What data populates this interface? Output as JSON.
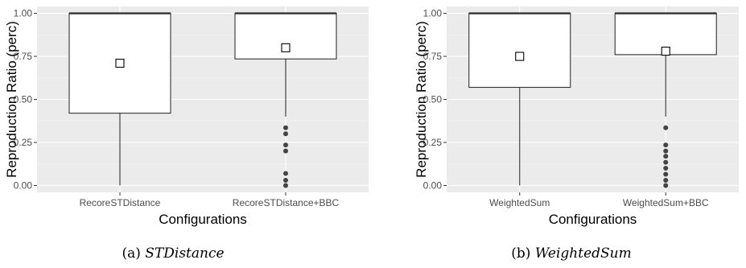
{
  "chart_data": [
    {
      "type": "boxplot",
      "panel_id": "a",
      "caption_prefix": "(a)",
      "caption_name": "STDistance",
      "xlabel": "Configurations",
      "ylabel": "Reproduction Ratio (perc)",
      "ylim": [
        -0.04,
        1.04
      ],
      "yticks": [
        0.0,
        0.25,
        0.5,
        0.75,
        1.0
      ],
      "ytick_labels": [
        "0.00",
        "0.25",
        "0.50",
        "0.75",
        "1.00"
      ],
      "grid": true,
      "categories": [
        "RecoreSTDistance",
        "RecoreSTDistance+BBC"
      ],
      "boxes": [
        {
          "min": 0.0,
          "q1": 0.42,
          "median": 1.0,
          "q3": 1.0,
          "max": 1.0,
          "mean": 0.71,
          "outliers": []
        },
        {
          "min": 0.4,
          "q1": 0.735,
          "median": 1.0,
          "q3": 1.0,
          "max": 1.0,
          "mean": 0.8,
          "outliers": [
            0.0,
            0.03,
            0.07,
            0.2,
            0.235,
            0.3,
            0.335
          ]
        }
      ]
    },
    {
      "type": "boxplot",
      "panel_id": "b",
      "caption_prefix": "(b)",
      "caption_name": "WeightedSum",
      "xlabel": "Configurations",
      "ylabel": "Reproduction Ratio (perc)",
      "ylim": [
        -0.04,
        1.04
      ],
      "yticks": [
        0.0,
        0.25,
        0.5,
        0.75,
        1.0
      ],
      "ytick_labels": [
        "0.00",
        "0.25",
        "0.50",
        "0.75",
        "1.00"
      ],
      "grid": true,
      "categories": [
        "WeightedSum",
        "WeightedSum+BBC"
      ],
      "boxes": [
        {
          "min": 0.0,
          "q1": 0.57,
          "median": 1.0,
          "q3": 1.0,
          "max": 1.0,
          "mean": 0.75,
          "outliers": []
        },
        {
          "min": 0.4,
          "q1": 0.76,
          "median": 1.0,
          "q3": 1.0,
          "max": 1.0,
          "mean": 0.78,
          "outliers": [
            0.0,
            0.03,
            0.065,
            0.1,
            0.135,
            0.17,
            0.2,
            0.235,
            0.335
          ]
        }
      ]
    }
  ]
}
